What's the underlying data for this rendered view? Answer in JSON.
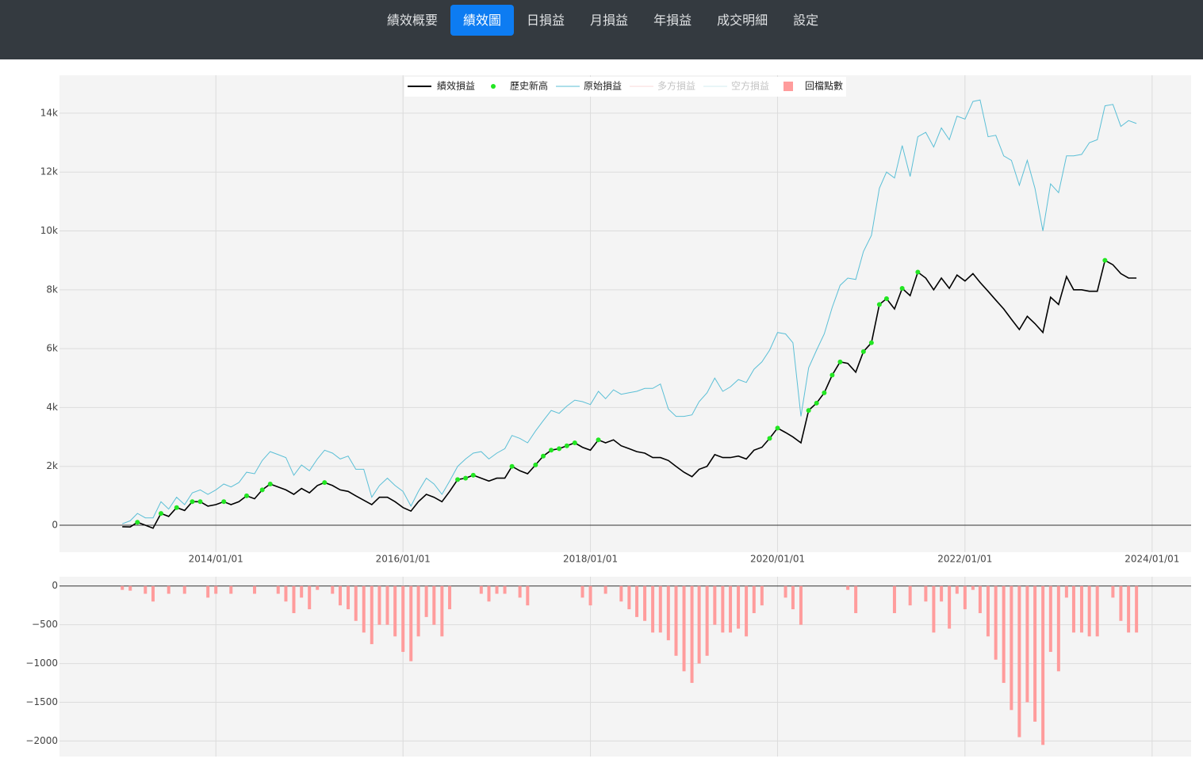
{
  "nav": {
    "items": [
      "績效概要",
      "績效圖",
      "日損益",
      "月損益",
      "年損益",
      "成交明細",
      "設定"
    ],
    "active": 1
  },
  "chart_data": {
    "type": "line",
    "x": [
      "2013/01/01",
      "2013/02/01",
      "2013/03/01",
      "2013/04/01",
      "2013/05/01",
      "2013/06/01",
      "2013/07/01",
      "2013/08/01",
      "2013/09/01",
      "2013/10/01",
      "2013/11/01",
      "2013/12/01",
      "2014/01/01",
      "2014/02/01",
      "2014/03/01",
      "2014/04/01",
      "2014/05/01",
      "2014/06/01",
      "2014/07/01",
      "2014/08/01",
      "2014/09/01",
      "2014/10/01",
      "2014/11/01",
      "2014/12/01",
      "2015/01/01",
      "2015/02/01",
      "2015/03/01",
      "2015/04/01",
      "2015/05/01",
      "2015/06/01",
      "2015/07/01",
      "2015/08/01",
      "2015/09/01",
      "2015/10/01",
      "2015/11/01",
      "2015/12/01",
      "2016/01/01",
      "2016/02/01",
      "2016/03/01",
      "2016/04/01",
      "2016/05/01",
      "2016/06/01",
      "2016/07/01",
      "2016/08/01",
      "2016/09/01",
      "2016/10/01",
      "2016/11/01",
      "2016/12/01",
      "2017/01/01",
      "2017/02/01",
      "2017/03/01",
      "2017/04/01",
      "2017/05/01",
      "2017/06/01",
      "2017/07/01",
      "2017/08/01",
      "2017/09/01",
      "2017/10/01",
      "2017/11/01",
      "2017/12/01",
      "2018/01/01",
      "2018/02/01",
      "2018/03/01",
      "2018/04/01",
      "2018/05/01",
      "2018/06/01",
      "2018/07/01",
      "2018/08/01",
      "2018/09/01",
      "2018/10/01",
      "2018/11/01",
      "2018/12/01",
      "2019/01/01",
      "2019/02/01",
      "2019/03/01",
      "2019/04/01",
      "2019/05/01",
      "2019/06/01",
      "2019/07/01",
      "2019/08/01",
      "2019/09/01",
      "2019/10/01",
      "2019/11/01",
      "2019/12/01",
      "2020/01/01",
      "2020/02/01",
      "2020/03/01",
      "2020/04/01",
      "2020/05/01",
      "2020/06/01",
      "2020/07/01",
      "2020/08/01",
      "2020/09/01",
      "2020/10/01",
      "2020/11/01",
      "2020/12/01",
      "2021/01/01",
      "2021/02/01",
      "2021/03/01",
      "2021/04/01",
      "2021/05/01",
      "2021/06/01",
      "2021/07/01",
      "2021/08/01",
      "2021/09/01",
      "2021/10/01",
      "2021/11/01",
      "2021/12/01",
      "2022/01/01",
      "2022/02/01",
      "2022/03/01",
      "2022/04/01",
      "2022/05/01",
      "2022/06/01",
      "2022/07/01",
      "2022/08/01",
      "2022/09/01",
      "2022/10/01",
      "2022/11/01",
      "2022/12/01",
      "2023/01/01",
      "2023/02/01",
      "2023/03/01",
      "2023/04/01",
      "2023/05/01",
      "2023/06/01",
      "2023/07/01",
      "2023/08/01",
      "2023/09/01",
      "2023/10/01",
      "2023/11/01"
    ],
    "xlim": [
      "2012/05/01",
      "2024/06/01"
    ],
    "xticks": [
      "2014/01/01",
      "2016/01/01",
      "2018/01/01",
      "2020/01/01",
      "2022/01/01",
      "2024/01/01"
    ],
    "ylim": [
      -915,
      15290
    ],
    "yticks": [
      0,
      {
        "value": 2000,
        "label": "2k"
      },
      {
        "value": 4000,
        "label": "4k"
      },
      {
        "value": 6000,
        "label": "6k"
      },
      {
        "value": 8000,
        "label": "8k"
      },
      {
        "value": 10000,
        "label": "10k"
      },
      {
        "value": 12000,
        "label": "12k"
      },
      {
        "value": 14000,
        "label": "14k"
      }
    ],
    "y2lim": [
      -2200,
      120
    ],
    "y2ticks": [
      0,
      {
        "value": -500,
        "label": "−500"
      },
      {
        "value": -1000,
        "label": "−1000"
      },
      {
        "value": -1500,
        "label": "−1500"
      },
      {
        "value": -2000,
        "label": "−2000"
      }
    ],
    "grid": true,
    "series": [
      {
        "name": "績效損益",
        "type": "line",
        "color": "#000000",
        "values": [
          -50,
          -60,
          100,
          0,
          -100,
          400,
          300,
          600,
          500,
          800,
          800,
          650,
          700,
          800,
          700,
          800,
          1000,
          900,
          1200,
          1400,
          1300,
          1200,
          1050,
          1250,
          1100,
          1350,
          1450,
          1350,
          1200,
          1150,
          1000,
          850,
          700,
          950,
          950,
          800,
          600,
          480,
          800,
          1050,
          950,
          800,
          1150,
          1550,
          1600,
          1700,
          1600,
          1500,
          1600,
          1600,
          2000,
          1850,
          1750,
          2050,
          2350,
          2550,
          2600,
          2700,
          2800,
          2650,
          2550,
          2900,
          2800,
          2900,
          2700,
          2600,
          2500,
          2450,
          2300,
          2300,
          2200,
          2000,
          1800,
          1650,
          1900,
          2000,
          2400,
          2300,
          2300,
          2350,
          2250,
          2550,
          2650,
          2950,
          3300,
          3150,
          3000,
          2800,
          3900,
          4150,
          4500,
          5100,
          5550,
          5500,
          5200,
          5900,
          6200,
          7500,
          7700,
          7350,
          8050,
          7800,
          8600,
          8400,
          8000,
          8400,
          8050,
          8500,
          8300,
          8550,
          8250,
          7950,
          7650,
          7350,
          7000,
          6650,
          7100,
          6850,
          6550,
          7750,
          7500,
          8450,
          8000,
          8000,
          7950,
          7950,
          9000,
          8850,
          8550,
          8400,
          8400
        ]
      },
      {
        "name": "歷史新高",
        "type": "scatter",
        "color": "#22e622",
        "values": [
          null,
          null,
          100,
          null,
          null,
          400,
          null,
          600,
          null,
          800,
          800,
          null,
          null,
          800,
          null,
          null,
          1000,
          null,
          1200,
          1400,
          null,
          null,
          null,
          null,
          null,
          null,
          1450,
          null,
          null,
          null,
          null,
          null,
          null,
          null,
          null,
          null,
          null,
          null,
          null,
          null,
          null,
          null,
          null,
          1550,
          1600,
          1700,
          null,
          null,
          null,
          null,
          2000,
          null,
          null,
          2050,
          2350,
          2550,
          2600,
          2700,
          2800,
          null,
          null,
          2900,
          null,
          null,
          null,
          null,
          null,
          null,
          null,
          null,
          null,
          null,
          null,
          null,
          null,
          null,
          null,
          null,
          null,
          null,
          null,
          null,
          null,
          2950,
          3300,
          null,
          null,
          null,
          3900,
          4150,
          4500,
          5100,
          5550,
          null,
          null,
          5900,
          6200,
          7500,
          7700,
          null,
          8050,
          null,
          8600,
          null,
          null,
          null,
          null,
          null,
          null,
          null,
          null,
          null,
          null,
          null,
          null,
          null,
          null,
          null,
          null,
          null,
          null,
          null,
          null,
          null,
          null,
          null,
          9000,
          null,
          null,
          null,
          null
        ]
      },
      {
        "name": "原始損益",
        "type": "line",
        "color": "#5bbfd6",
        "values": [
          50,
          150,
          400,
          250,
          250,
          800,
          550,
          950,
          700,
          1100,
          1200,
          1050,
          1200,
          1400,
          1300,
          1450,
          1800,
          1750,
          2200,
          2500,
          2400,
          2300,
          1700,
          2050,
          1850,
          2250,
          2550,
          2450,
          2250,
          2350,
          1900,
          1900,
          950,
          1350,
          1600,
          1350,
          1150,
          650,
          1150,
          1600,
          1400,
          1050,
          1500,
          2000,
          2250,
          2450,
          2500,
          2250,
          2450,
          2600,
          3050,
          2950,
          2800,
          3200,
          3550,
          3900,
          3800,
          4050,
          4250,
          4200,
          4100,
          4550,
          4300,
          4600,
          4450,
          4500,
          4550,
          4650,
          4650,
          4800,
          3950,
          3700,
          3700,
          3750,
          4200,
          4500,
          5000,
          4550,
          4700,
          4950,
          4850,
          5300,
          5550,
          5950,
          6550,
          6500,
          6200,
          3700,
          5350,
          5950,
          6500,
          7400,
          8150,
          8400,
          8350,
          9300,
          9850,
          11450,
          12000,
          11800,
          12900,
          11850,
          13200,
          13350,
          12850,
          13500,
          13100,
          13900,
          13800,
          14400,
          14450,
          13200,
          13250,
          12550,
          12400,
          11550,
          12400,
          11450,
          10000,
          11600,
          11300,
          12550,
          12550,
          12600,
          13000,
          13100,
          14250,
          14300,
          13550,
          13750,
          13650
        ]
      },
      {
        "name": "多方損益",
        "type": "line",
        "color": "#f4b4b4",
        "visible": false
      },
      {
        "name": "空方損益",
        "type": "line",
        "color": "#a9dbe6",
        "visible": false
      },
      {
        "name": "回檔點數",
        "type": "bar",
        "axis": "y2",
        "color": "#ff9c9c",
        "values": [
          -50,
          -60,
          0,
          -100,
          -200,
          0,
          -100,
          0,
          -100,
          0,
          0,
          -150,
          -100,
          0,
          -100,
          0,
          0,
          -100,
          0,
          0,
          -100,
          -200,
          -350,
          -150,
          -300,
          -50,
          0,
          -100,
          -250,
          -300,
          -450,
          -600,
          -750,
          -500,
          -500,
          -650,
          -850,
          -970,
          -650,
          -400,
          -500,
          -650,
          -300,
          0,
          0,
          0,
          -100,
          -200,
          -100,
          -100,
          0,
          -150,
          -250,
          0,
          0,
          0,
          0,
          0,
          0,
          -150,
          -250,
          0,
          -100,
          0,
          -200,
          -300,
          -400,
          -450,
          -600,
          -600,
          -700,
          -900,
          -1100,
          -1250,
          -1000,
          -900,
          -500,
          -600,
          -600,
          -550,
          -650,
          -350,
          -250,
          0,
          0,
          -150,
          -300,
          -500,
          0,
          0,
          0,
          0,
          0,
          -50,
          -350,
          0,
          0,
          0,
          0,
          -350,
          0,
          -250,
          0,
          -200,
          -600,
          -200,
          -550,
          -100,
          -300,
          -50,
          -350,
          -650,
          -950,
          -1250,
          -1600,
          -1950,
          -1500,
          -1750,
          -2050,
          -850,
          -1100,
          -150,
          -600,
          -600,
          -650,
          -650,
          0,
          -150,
          -450,
          -600,
          -600
        ]
      }
    ]
  }
}
